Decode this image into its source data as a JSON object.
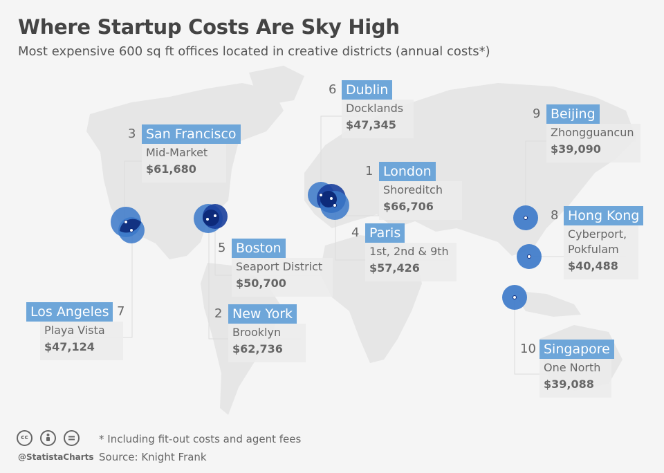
{
  "title": "Where Startup Costs Are Sky High",
  "subtitle": "Most expensive 600 sq ft offices located in creative districts (annual costs*)",
  "footnote": "* Including fit-out costs and agent fees",
  "source": "Source: Knight Frank",
  "brand": {
    "handle": "@StatistaCharts",
    "icons": [
      "cc-icon",
      "attribution-icon",
      "no-derivatives-icon"
    ]
  },
  "colors": {
    "label_bg": "#6ea6d9",
    "marker": "#3a78c9",
    "marker_dark": "#0d2a7a",
    "land": "#e6e6e6"
  },
  "cities": [
    {
      "rank": "1",
      "city": "London",
      "district": "Shoreditch",
      "cost": "$66,706"
    },
    {
      "rank": "2",
      "city": "New York",
      "district": "Brooklyn",
      "cost": "$62,736"
    },
    {
      "rank": "3",
      "city": "San Francisco",
      "district": "Mid-Market",
      "cost": "$61,680"
    },
    {
      "rank": "4",
      "city": "Paris",
      "district": "1st, 2nd & 9th",
      "cost": "$57,426"
    },
    {
      "rank": "5",
      "city": "Boston",
      "district": "Seaport District",
      "cost": "$50,700"
    },
    {
      "rank": "6",
      "city": "Dublin",
      "district": "Docklands",
      "cost": "$47,345"
    },
    {
      "rank": "7",
      "city": "Los Angeles",
      "district": "Playa Vista",
      "cost": "$47,124"
    },
    {
      "rank": "8",
      "city": "Hong Kong",
      "district": "Cyberport,\nPokfulam",
      "district_line1": "Cyberport,",
      "district_line2": "Pokfulam",
      "cost": "$40,488"
    },
    {
      "rank": "9",
      "city": "Beijing",
      "district": "Zhongguancun",
      "cost": "$39,090"
    },
    {
      "rank": "10",
      "city": "Singapore",
      "district": "One North",
      "cost": "$39,088"
    }
  ]
}
